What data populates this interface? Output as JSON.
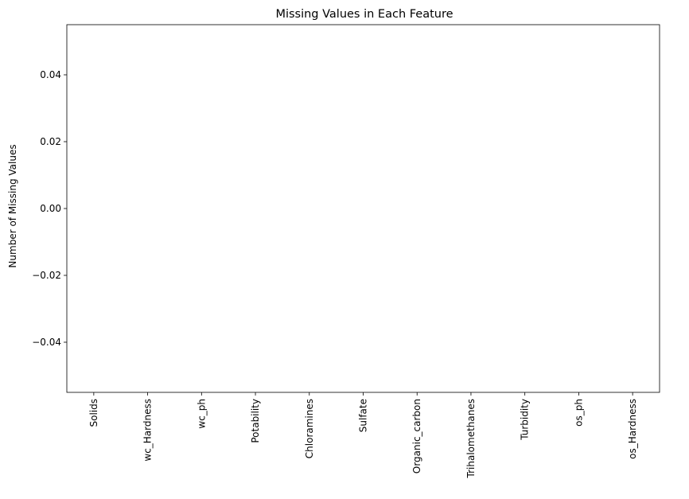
{
  "chart_data": {
    "type": "bar",
    "title": "Missing Values in Each Feature",
    "xlabel": "",
    "ylabel": "Number of Missing Values",
    "categories": [
      "Solids",
      "wc_Hardness",
      "wc_ph",
      "Potability",
      "Chloramines",
      "Sulfate",
      "Organic_carbon",
      "Trihalomethanes",
      "Turbidity",
      "os_ph",
      "os_Hardness"
    ],
    "values": [
      0,
      0,
      0,
      0,
      0,
      0,
      0,
      0,
      0,
      0,
      0
    ],
    "ylim": [
      -0.055,
      0.055
    ],
    "yticks": [
      -0.04,
      -0.02,
      0.0,
      0.02,
      0.04
    ],
    "ytick_labels": [
      "−0.04",
      "−0.02",
      "0.00",
      "0.02",
      "0.04"
    ],
    "grid": false,
    "bar_color": "#1f77b4"
  }
}
